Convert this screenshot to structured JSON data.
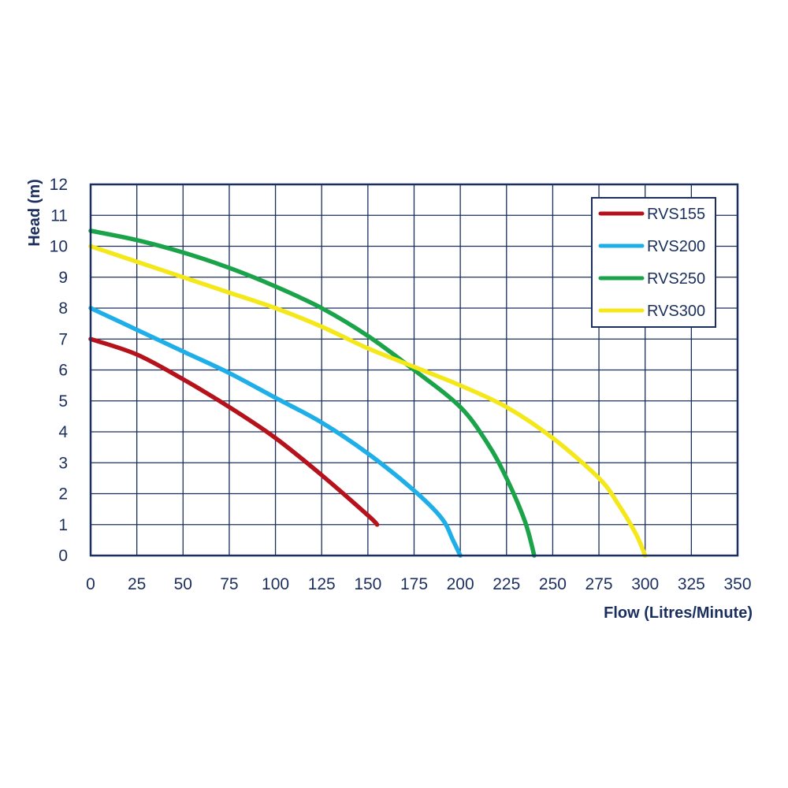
{
  "chart_data": {
    "type": "line",
    "xlabel": "Flow (Litres/Minute)",
    "ylabel": "Head (m)",
    "xlim": [
      0,
      350
    ],
    "ylim": [
      0,
      12
    ],
    "xticks": [
      "0",
      "25",
      "50",
      "75",
      "100",
      "125",
      "150",
      "175",
      "200",
      "225",
      "250",
      "275",
      "300",
      "325",
      "350"
    ],
    "yticks": [
      "0",
      "1",
      "2",
      "3",
      "4",
      "5",
      "6",
      "7",
      "8",
      "9",
      "10",
      "11",
      "12"
    ],
    "grid": true,
    "legend_position": "top-right",
    "colors": {
      "frame": "#1b2f5e",
      "grid": "#1b2f5e",
      "text": "#1b2f5e"
    },
    "series": [
      {
        "name": "RVS155",
        "color": "#b5121b",
        "x": [
          0,
          25,
          50,
          75,
          100,
          125,
          150,
          155
        ],
        "y": [
          7.0,
          6.5,
          5.7,
          4.8,
          3.8,
          2.6,
          1.3,
          1.0
        ]
      },
      {
        "name": "RVS200",
        "color": "#1eaee8",
        "x": [
          0,
          25,
          50,
          75,
          100,
          125,
          150,
          175,
          190,
          196,
          200
        ],
        "y": [
          8.0,
          7.3,
          6.6,
          5.9,
          5.1,
          4.3,
          3.3,
          2.1,
          1.2,
          0.5,
          0.0
        ]
      },
      {
        "name": "RVS250",
        "color": "#1ba34a",
        "x": [
          0,
          25,
          50,
          75,
          100,
          125,
          150,
          175,
          200,
          215,
          225,
          235,
          240
        ],
        "y": [
          10.5,
          10.2,
          9.8,
          9.3,
          8.7,
          8.0,
          7.1,
          6.0,
          4.8,
          3.6,
          2.5,
          1.1,
          0.0
        ]
      },
      {
        "name": "RVS300",
        "color": "#f4e81a",
        "x": [
          0,
          25,
          50,
          75,
          100,
          125,
          150,
          175,
          200,
          225,
          250,
          275,
          285,
          295,
          300
        ],
        "y": [
          10.0,
          9.5,
          9.0,
          8.5,
          8.0,
          7.4,
          6.7,
          6.1,
          5.5,
          4.8,
          3.8,
          2.5,
          1.7,
          0.7,
          0.0
        ]
      }
    ]
  }
}
